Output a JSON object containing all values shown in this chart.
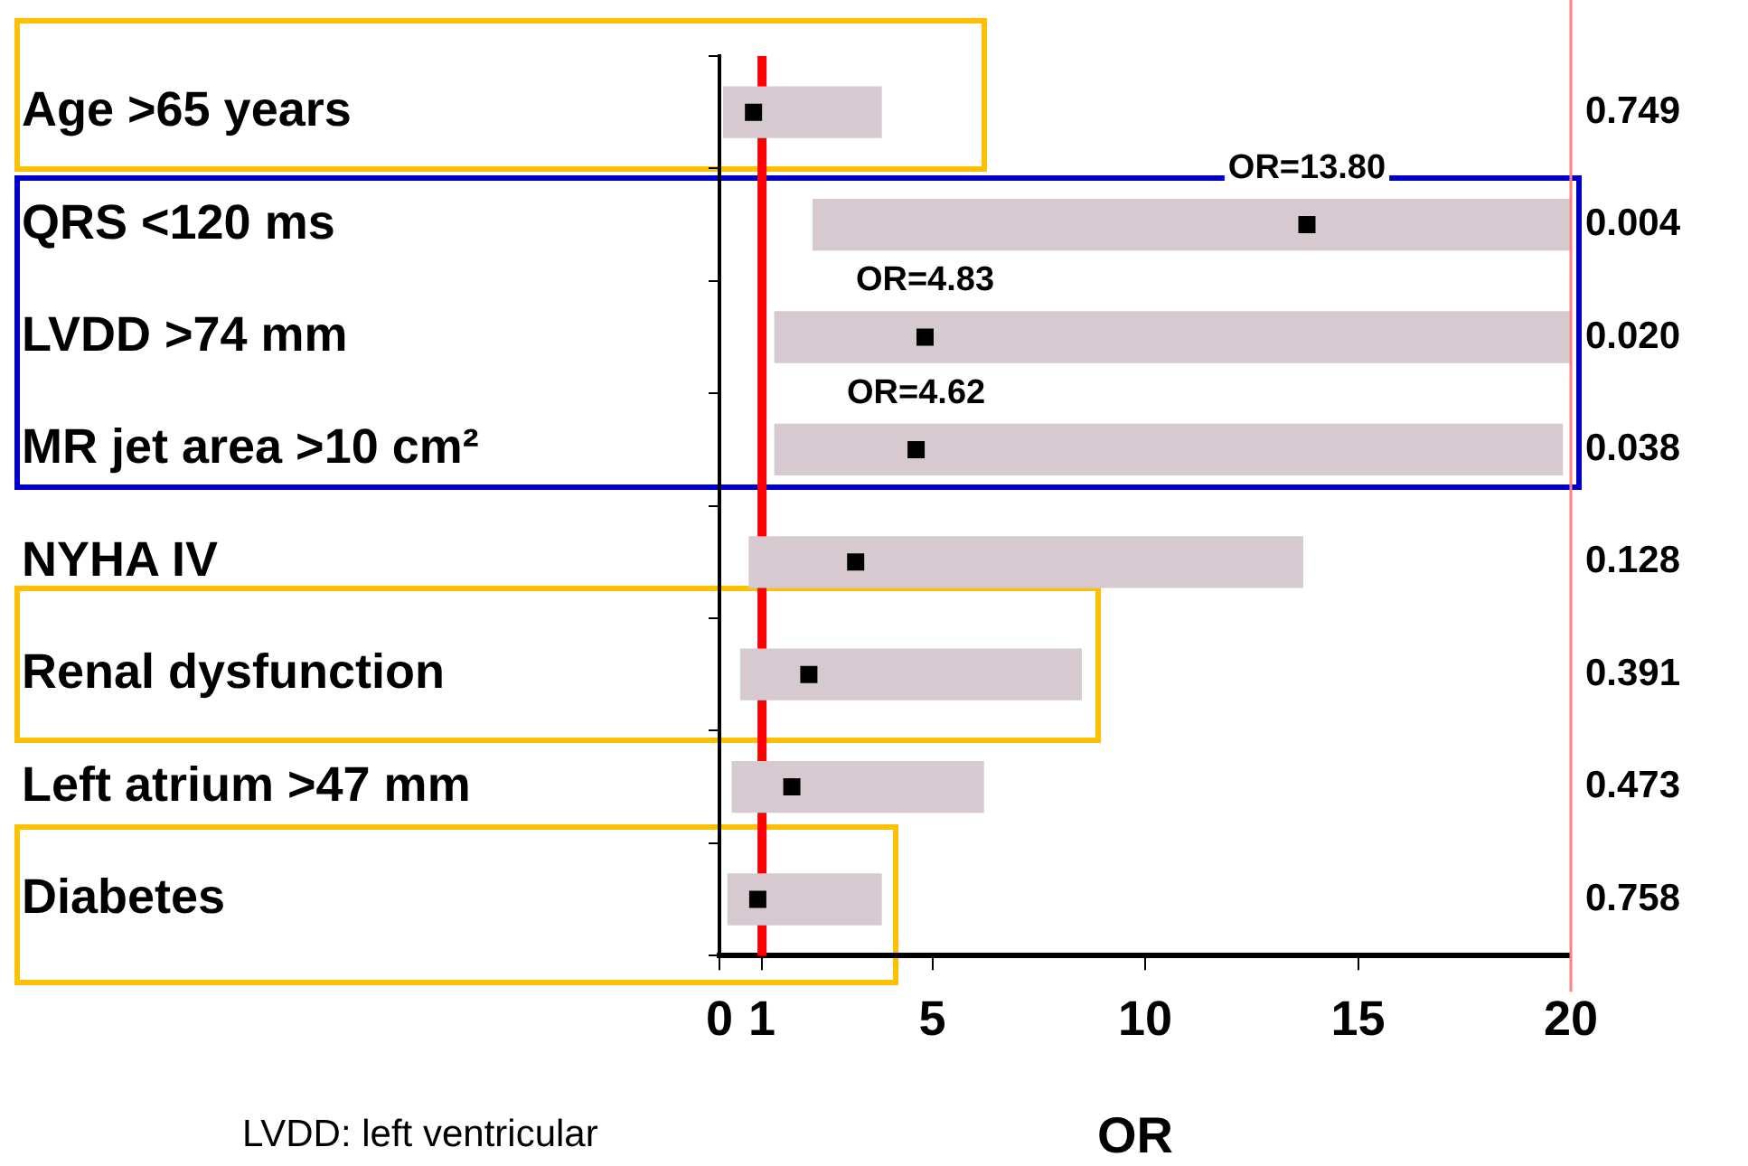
{
  "chart_data": {
    "type": "bar",
    "orientation": "horizontal",
    "xlabel": "OR",
    "categories": [
      "Age >65 years",
      "QRS <120 ms",
      "LVDD >74 mm",
      "MR jet area >10 cm²",
      "NYHA IV",
      "Renal dysfunction",
      "Left atrium >47 mm",
      "Diabetes"
    ],
    "y2_categories": [
      "0.749",
      "0.004",
      "0.020",
      "0.038",
      "0.128",
      "0.391",
      "0.473",
      "0.758"
    ],
    "series": [
      {
        "type": "bar",
        "color": "#d6c9d0",
        "base": [
          0.1,
          2.2,
          1.3,
          1.3,
          0.7,
          0.5,
          0.3,
          0.2
        ],
        "values": [
          3.7,
          17.8,
          18.7,
          18.5,
          13.0,
          8.0,
          5.9,
          3.6
        ]
      },
      {
        "type": "scatter",
        "color": "#000000",
        "x": [
          "Age >65 years",
          "QRS <120 ms",
          "LVDD >74 mm",
          "MR jet area >10 cm²",
          "NYHA IV",
          "Renal dysfunction",
          "Left atrium >47 mm",
          "Diabetes"
        ],
        "values": [
          0.8,
          13.8,
          4.83,
          4.62,
          3.2,
          2.1,
          1.7,
          0.9
        ]
      }
    ],
    "xlim": [
      0,
      20
    ],
    "xticks": [
      0,
      1,
      5,
      10,
      15,
      20
    ],
    "ref_lines": [
      {
        "axis": "x",
        "value": 1,
        "color": "#ff0000"
      }
    ],
    "annotations": [
      {
        "text": "OR=13.80",
        "x": 13.8,
        "y": "QRS <120 ms"
      },
      {
        "text": "OR=4.83",
        "x": 4.83,
        "y": "LVDD >74 mm"
      },
      {
        "text": "OR=4.62",
        "x": 4.62,
        "y": "MR jet area >10 cm²"
      },
      "LVDD: left ventricular"
    ],
    "marker": "square",
    "grid": false,
    "legend": false
  }
}
